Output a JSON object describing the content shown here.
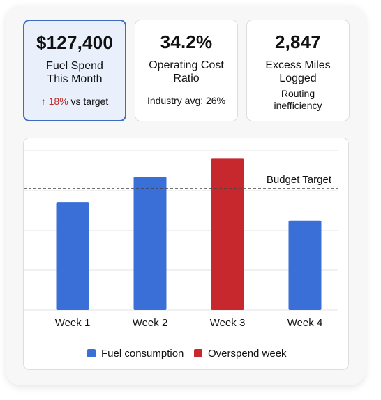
{
  "kpis": [
    {
      "value": "$127,400",
      "label_lines": [
        "Fuel Spend",
        "This Month"
      ],
      "note_arrow": "↑",
      "note_delta": "18%",
      "note_rest": " vs target",
      "highlight": true
    },
    {
      "value": "34.2%",
      "label_lines": [
        "Operating Cost",
        "Ratio"
      ],
      "note_lines": [
        "Industry avg: 26%"
      ]
    },
    {
      "value": "2,847",
      "label_lines": [
        "Excess Miles",
        "Logged"
      ],
      "note_lines": [
        "Routing",
        "inefficiency"
      ]
    }
  ],
  "colors": {
    "fuel": "#3b6fd8",
    "overspend": "#c7282d",
    "delta": "#c0282a",
    "highlight_border": "#3d6cc0"
  },
  "chart_data": {
    "type": "bar",
    "categories": [
      "Week 1",
      "Week 2",
      "Week 3",
      "Week 4"
    ],
    "values": [
      27,
      33.5,
      38,
      22.5
    ],
    "highlight_index": 2,
    "ylim": [
      0,
      40
    ],
    "grid": true,
    "budget_target": 30.5,
    "budget_label": "Budget Target",
    "legend": [
      {
        "label": "Fuel consumption",
        "color": "#3b6fd8"
      },
      {
        "label": "Overspend week",
        "color": "#c7282d"
      }
    ],
    "legend_position": "bottom",
    "title": "",
    "xlabel": "",
    "ylabel": ""
  }
}
